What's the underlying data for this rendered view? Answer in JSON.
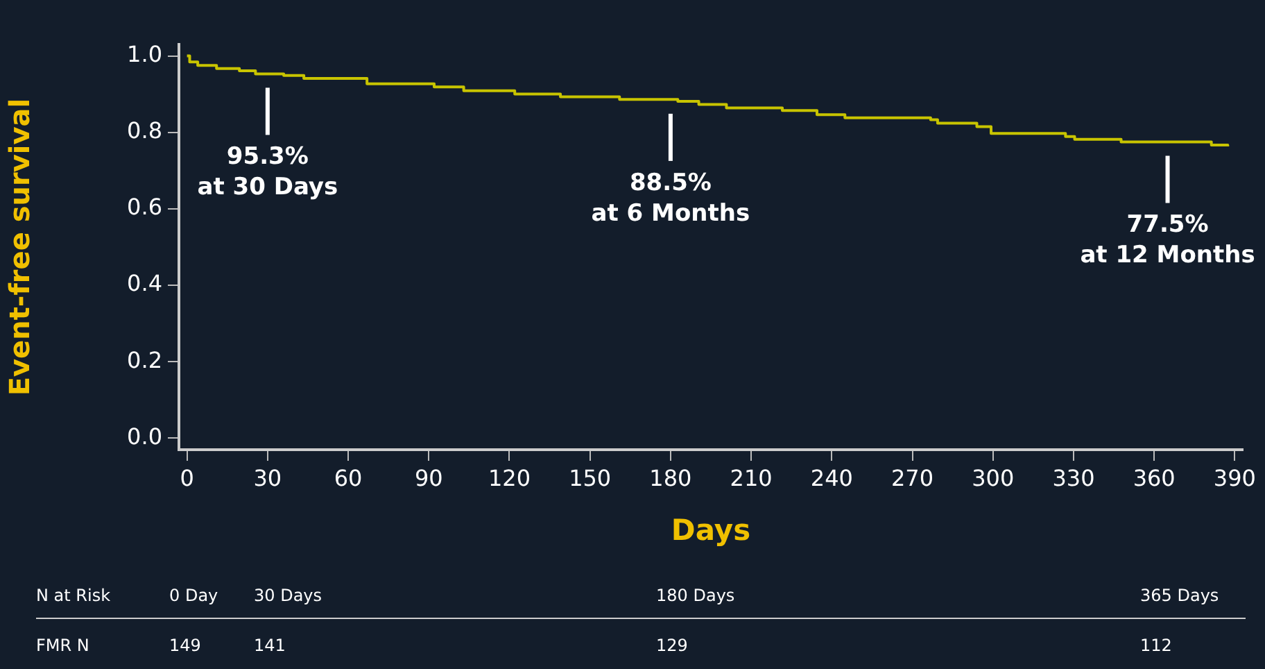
{
  "chart_data": {
    "type": "step",
    "xlabel": "Days",
    "ylabel": "Event-free survival",
    "x": [
      0,
      1,
      4,
      11,
      19.5,
      25.5,
      36,
      43.5,
      67,
      92,
      103,
      122,
      139,
      161,
      182.7,
      190.5,
      200.8,
      221.6,
      234.5,
      244.9,
      276.8,
      279.4,
      294,
      299.3,
      327,
      330.4,
      347.7,
      381.3,
      387.4
    ],
    "values": [
      1.0,
      0.984,
      0.975,
      0.967,
      0.961,
      0.953,
      0.949,
      0.941,
      0.927,
      0.919,
      0.909,
      0.9,
      0.893,
      0.886,
      0.881,
      0.873,
      0.864,
      0.857,
      0.846,
      0.838,
      0.833,
      0.824,
      0.815,
      0.797,
      0.789,
      0.782,
      0.775,
      0.767,
      0.763
    ],
    "color": "#c8c400",
    "xlim": [
      -3,
      393
    ],
    "xticks": [
      0,
      30,
      60,
      90,
      120,
      150,
      180,
      210,
      240,
      270,
      300,
      330,
      360,
      390
    ],
    "ylim": [
      -0.03,
      1.03
    ],
    "yticks": [
      {
        "value": 0,
        "label": "0.0"
      },
      0.2,
      0.4,
      0.6,
      0.8,
      {
        "value": 1,
        "label": "1.0"
      }
    ],
    "grid": false,
    "legend": false,
    "annotations": [
      {
        "text": "95.3%\nat 30 Days",
        "x": 30,
        "y": 0.953
      },
      {
        "text": "88.5%\nat 6 Months",
        "x": 180,
        "y": 0.885
      },
      {
        "text": "77.5%\nat 12 Months",
        "x": 365,
        "y": 0.775
      },
      "N at Risk",
      "0 Day",
      "30 Days",
      "180 Days",
      "365 Days",
      "FMR N",
      "149",
      "141",
      "129",
      "112"
    ]
  }
}
